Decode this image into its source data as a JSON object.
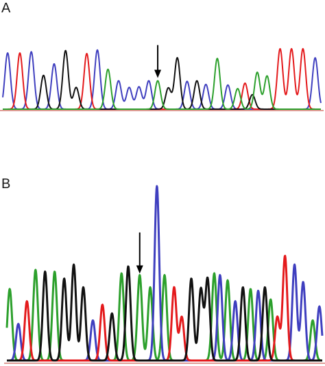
{
  "panels": [
    {
      "label": "A",
      "arrow_peak_index": 14
    },
    {
      "label": "B",
      "arrow_peak_index": 14
    }
  ],
  "colors": {
    "A": "#2ca02c",
    "C": "#3f3fbf",
    "G": "#111111",
    "T": "#e41a1c",
    "baseline": "#c0392b",
    "arrow": "#000000"
  },
  "chart_data": [
    {
      "type": "line",
      "panel": "A",
      "title": "",
      "xlabel": "",
      "ylabel": "",
      "grid": false,
      "x_range": [
        0,
        39
      ],
      "y_range": [
        0,
        1
      ],
      "series_order": [
        "C",
        "T",
        "G",
        "A"
      ],
      "peaks": [
        {
          "base": "C",
          "x": 0.6,
          "h": 0.93
        },
        {
          "base": "T",
          "x": 2.1,
          "h": 0.93
        },
        {
          "base": "C",
          "x": 3.5,
          "h": 0.95
        },
        {
          "base": "G",
          "x": 5.0,
          "h": 0.56
        },
        {
          "base": "C",
          "x": 6.3,
          "h": 0.75
        },
        {
          "base": "G",
          "x": 7.7,
          "h": 0.97
        },
        {
          "base": "G",
          "x": 9.0,
          "h": 0.36
        },
        {
          "base": "T",
          "x": 10.3,
          "h": 0.92
        },
        {
          "base": "C",
          "x": 11.6,
          "h": 0.98
        },
        {
          "base": "A",
          "x": 12.9,
          "h": 0.66
        },
        {
          "base": "C",
          "x": 14.2,
          "h": 0.47
        },
        {
          "base": "C",
          "x": 15.5,
          "h": 0.36
        },
        {
          "base": "C",
          "x": 16.7,
          "h": 0.37
        },
        {
          "base": "C",
          "x": 17.9,
          "h": 0.47
        },
        {
          "base": "A",
          "x": 19.0,
          "h": 0.47
        },
        {
          "base": "G",
          "x": 20.3,
          "h": 0.35
        },
        {
          "base": "G",
          "x": 21.4,
          "h": 0.85
        },
        {
          "base": "C",
          "x": 22.6,
          "h": 0.46
        },
        {
          "base": "G",
          "x": 23.8,
          "h": 0.47
        },
        {
          "base": "C",
          "x": 24.9,
          "h": 0.41
        },
        {
          "base": "A",
          "x": 26.3,
          "h": 0.84
        },
        {
          "base": "C",
          "x": 27.6,
          "h": 0.4
        },
        {
          "base": "A",
          "x": 28.8,
          "h": 0.34
        },
        {
          "base": "T",
          "x": 29.7,
          "h": 0.43
        },
        {
          "base": "G",
          "x": 30.6,
          "h": 0.24
        },
        {
          "base": "A",
          "x": 31.2,
          "h": 0.61
        },
        {
          "base": "A",
          "x": 32.4,
          "h": 0.55
        },
        {
          "base": "T",
          "x": 34.0,
          "h": 1.0
        },
        {
          "base": "T",
          "x": 35.4,
          "h": 1.0
        },
        {
          "base": "T",
          "x": 36.8,
          "h": 1.0
        },
        {
          "base": "C",
          "x": 38.3,
          "h": 0.85
        }
      ]
    },
    {
      "type": "line",
      "panel": "B",
      "title": "",
      "xlabel": "",
      "ylabel": "",
      "grid": false,
      "x_range": [
        0,
        33
      ],
      "y_range": [
        0,
        1
      ],
      "series_order": [
        "A",
        "C",
        "T",
        "G"
      ],
      "peaks": [
        {
          "base": "A",
          "x": 0.3,
          "h": 0.41
        },
        {
          "base": "C",
          "x": 1.2,
          "h": 0.21
        },
        {
          "base": "T",
          "x": 2.1,
          "h": 0.34
        },
        {
          "base": "A",
          "x": 3.0,
          "h": 0.52
        },
        {
          "base": "G",
          "x": 4.0,
          "h": 0.51
        },
        {
          "base": "A",
          "x": 5.0,
          "h": 0.51
        },
        {
          "base": "G",
          "x": 6.0,
          "h": 0.47
        },
        {
          "base": "G",
          "x": 7.0,
          "h": 0.55
        },
        {
          "base": "G",
          "x": 8.0,
          "h": 0.42
        },
        {
          "base": "C",
          "x": 9.0,
          "h": 0.23
        },
        {
          "base": "T",
          "x": 10.0,
          "h": 0.32
        },
        {
          "base": "G",
          "x": 11.0,
          "h": 0.27
        },
        {
          "base": "A",
          "x": 12.0,
          "h": 0.5
        },
        {
          "base": "G",
          "x": 12.7,
          "h": 0.54
        },
        {
          "base": "A",
          "x": 13.9,
          "h": 0.49
        },
        {
          "base": "A",
          "x": 15.0,
          "h": 0.42
        },
        {
          "base": "C",
          "x": 15.7,
          "h": 1.0
        },
        {
          "base": "A",
          "x": 16.5,
          "h": 0.49
        },
        {
          "base": "T",
          "x": 17.5,
          "h": 0.42
        },
        {
          "base": "T",
          "x": 18.3,
          "h": 0.25
        },
        {
          "base": "G",
          "x": 19.3,
          "h": 0.47
        },
        {
          "base": "G",
          "x": 20.3,
          "h": 0.41
        },
        {
          "base": "G",
          "x": 21.0,
          "h": 0.47
        },
        {
          "base": "A",
          "x": 21.7,
          "h": 0.5
        },
        {
          "base": "C",
          "x": 22.3,
          "h": 0.49
        },
        {
          "base": "A",
          "x": 23.1,
          "h": 0.46
        },
        {
          "base": "C",
          "x": 23.9,
          "h": 0.34
        },
        {
          "base": "G",
          "x": 24.7,
          "h": 0.42
        },
        {
          "base": "A",
          "x": 25.5,
          "h": 0.41
        },
        {
          "base": "C",
          "x": 26.3,
          "h": 0.4
        },
        {
          "base": "G",
          "x": 27.0,
          "h": 0.42
        },
        {
          "base": "A",
          "x": 27.6,
          "h": 0.35
        },
        {
          "base": "T",
          "x": 28.3,
          "h": 0.25
        },
        {
          "base": "T",
          "x": 29.1,
          "h": 0.6
        },
        {
          "base": "C",
          "x": 30.1,
          "h": 0.55
        },
        {
          "base": "C",
          "x": 31.0,
          "h": 0.45
        },
        {
          "base": "A",
          "x": 32.0,
          "h": 0.23
        },
        {
          "base": "C",
          "x": 32.7,
          "h": 0.31
        }
      ]
    }
  ]
}
